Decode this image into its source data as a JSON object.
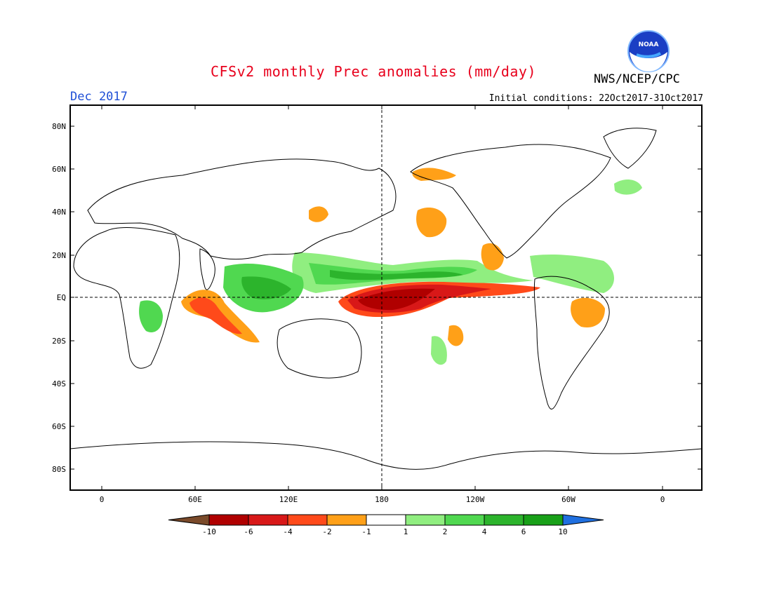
{
  "title": "CFSv2 monthly Prec anomalies (mm/day)",
  "agency": "NWS/NCEP/CPC",
  "logo_text": "NOAA",
  "month": "Dec 2017",
  "initial_conditions": "Initial conditions: 22Oct2017-31Oct2017",
  "lat_labels": [
    "80N",
    "60N",
    "40N",
    "20N",
    "EQ",
    "20S",
    "40S",
    "60S",
    "80S"
  ],
  "lon_labels": [
    "0",
    "60E",
    "120E",
    "180",
    "120W",
    "60W",
    "0"
  ],
  "colorbar": {
    "labels": [
      "-10",
      "-6",
      "-4",
      "-2",
      "-1",
      "1",
      "2",
      "4",
      "6",
      "10"
    ],
    "colors": [
      "#7a4a2a",
      "#b00000",
      "#d81818",
      "#ff4a1a",
      "#ffa018",
      "#ffffff",
      "#90ee80",
      "#50d850",
      "#2cb42c",
      "#18a018",
      "#2070e0"
    ]
  },
  "anomaly_regions": [
    {
      "desc": "central equatorial Pacific dry",
      "colors": [
        "#ff4a1a",
        "#d81818",
        "#b00000"
      ]
    },
    {
      "desc": "western equatorial Indian Ocean dry",
      "colors": [
        "#ffa018",
        "#ff4a1a"
      ]
    },
    {
      "desc": "ITCZ / north of equator wet",
      "colors": [
        "#90ee80",
        "#50d850",
        "#2cb42c"
      ]
    },
    {
      "desc": "Maritime Continent wet",
      "colors": [
        "#90ee80",
        "#50d850",
        "#2cb42c"
      ]
    },
    {
      "desc": "Brazil dry",
      "colors": [
        "#ffa018"
      ]
    }
  ]
}
